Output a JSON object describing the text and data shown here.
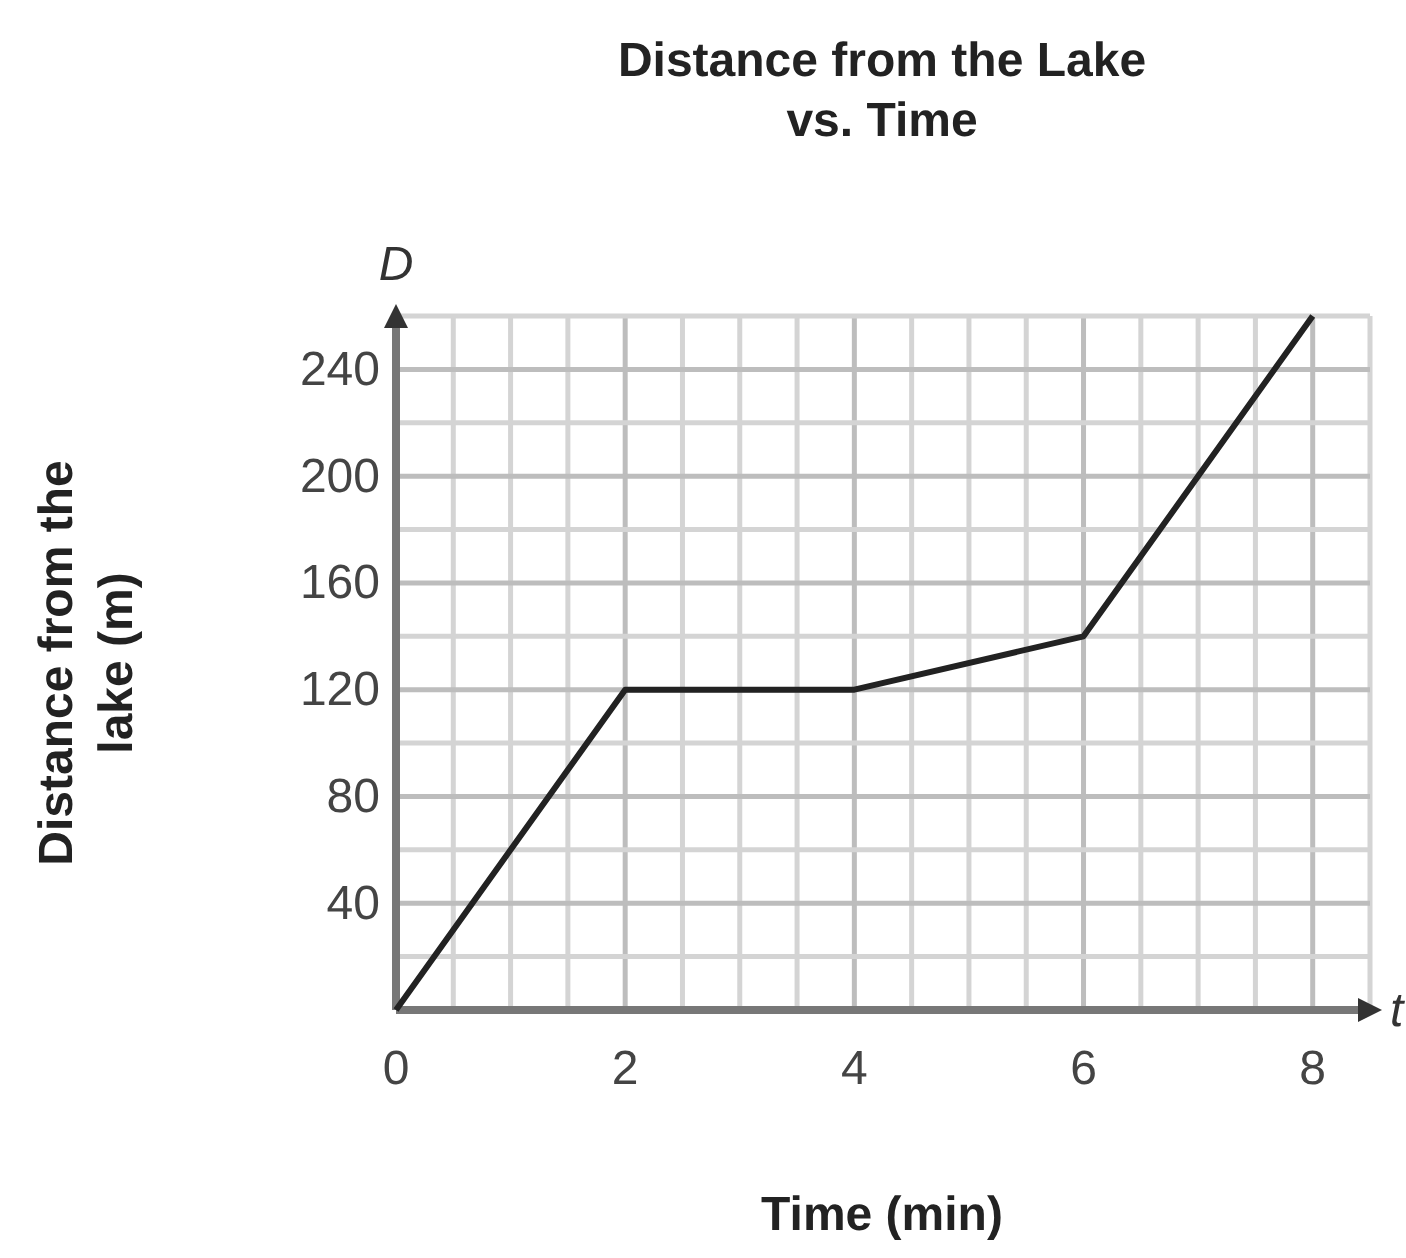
{
  "chart_data": {
    "type": "line",
    "title": "Distance from the Lake vs. Time",
    "xlabel": "Time (min)",
    "ylabel": "Distance from the lake (m)",
    "annotations": [
      "D",
      "t"
    ],
    "x": [
      0,
      2,
      4,
      6,
      8
    ],
    "series": [
      {
        "color": "#222222",
        "values": [
          0,
          120,
          120,
          140,
          260
        ]
      }
    ],
    "xlim": [
      0,
      8.5
    ],
    "ylim": [
      0,
      260
    ],
    "xticks": [
      0,
      {
        "value": 0.5,
        "label": null
      },
      {
        "value": 1,
        "label": null
      },
      {
        "value": 1.5,
        "label": null
      },
      2,
      {
        "value": 2.5,
        "label": null
      },
      {
        "value": 3,
        "label": null
      },
      {
        "value": 3.5,
        "label": null
      },
      4,
      {
        "value": 4.5,
        "label": null
      },
      {
        "value": 5,
        "label": null
      },
      {
        "value": 5.5,
        "label": null
      },
      6,
      {
        "value": 6.5,
        "label": null
      },
      {
        "value": 7,
        "label": null
      },
      {
        "value": 7.5,
        "label": null
      },
      8,
      {
        "value": 8.5,
        "label": null
      }
    ],
    "yticks": [
      {
        "value": 20,
        "label": null
      },
      40,
      {
        "value": 60,
        "label": null
      },
      80,
      {
        "value": 100,
        "label": null
      },
      120,
      {
        "value": 140,
        "label": null
      },
      160,
      {
        "value": 180,
        "label": null
      },
      200,
      {
        "value": 220,
        "label": null
      },
      240,
      {
        "value": 260,
        "label": null
      }
    ],
    "grid": true,
    "marker": "none",
    "line_style": "solid"
  }
}
